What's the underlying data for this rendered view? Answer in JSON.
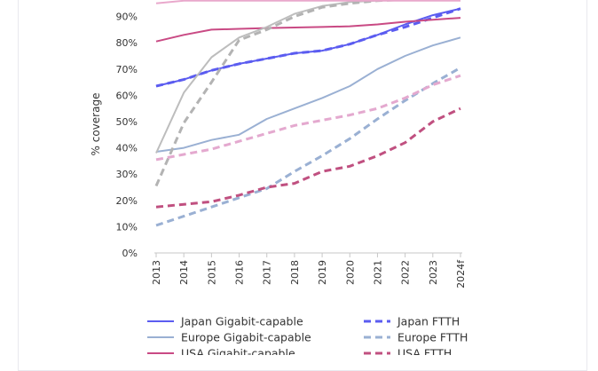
{
  "chart_data": {
    "type": "line",
    "ylabel": "% coverage",
    "ylim": [
      0,
      100
    ],
    "categories": [
      "2013",
      "2014",
      "2015",
      "2016",
      "2017",
      "2018",
      "2019",
      "2020",
      "2021",
      "2022",
      "2023",
      "2024f"
    ],
    "y_ticks": [
      "0%",
      "10%",
      "20%",
      "30%",
      "40%",
      "50%",
      "60%",
      "70%",
      "80%",
      "90%"
    ],
    "legend_position": "bottom",
    "series": [
      {
        "name": "Japan Gigabit-capable",
        "style": "solid",
        "color": "#5b5cf0",
        "values": [
          63.5,
          66,
          69.5,
          72,
          74,
          76,
          77,
          79.5,
          83,
          87,
          90.5,
          93
        ]
      },
      {
        "name": "Japan FTTH",
        "style": "dashed",
        "color": "#5b5cf0",
        "values": [
          63.5,
          66,
          69.5,
          72,
          74,
          76,
          77,
          79.5,
          83,
          86,
          89.5,
          93
        ]
      },
      {
        "name": "Europe Gigabit-capable",
        "style": "solid",
        "color": "#9ab0d3",
        "values": [
          38.5,
          40,
          43,
          45,
          51,
          55,
          59,
          63.5,
          70,
          75,
          79,
          82
        ]
      },
      {
        "name": "Europe FTTH",
        "style": "dashed",
        "color": "#9ab0d3",
        "values": [
          10.5,
          14,
          17.5,
          21,
          24.5,
          31,
          37,
          43.5,
          51,
          58,
          64.5,
          70.5
        ]
      },
      {
        "name": "USA Gigabit-capable",
        "style": "solid",
        "color": "#c94a84",
        "values": [
          80.5,
          83,
          85,
          85.3,
          85.6,
          85.8,
          86,
          86.3,
          87,
          88,
          88.8,
          89.5
        ]
      },
      {
        "name": "USA FTTH",
        "style": "dashed",
        "color": "#c05080",
        "values": [
          17.5,
          18.5,
          19.5,
          22,
          25,
          26.5,
          31,
          33,
          37,
          42,
          50,
          55
        ]
      },
      {
        "name": "",
        "style": "solid",
        "color": "#bdbdbd",
        "values": [
          38,
          61,
          74.5,
          82,
          86,
          91,
          94,
          95.5,
          96,
          96.5,
          97,
          97
        ]
      },
      {
        "name": "",
        "style": "dashed",
        "color": "#b3b3b3",
        "values": [
          25.5,
          49.5,
          65,
          81,
          85,
          90,
          93.5,
          95,
          96,
          96.5,
          97,
          97
        ]
      },
      {
        "name": "",
        "style": "solid",
        "color": "#e9a8cc",
        "values": [
          95,
          96,
          96,
          96,
          96,
          96,
          96,
          96,
          96,
          96,
          96,
          96
        ]
      },
      {
        "name": "",
        "style": "dashed",
        "color": "#e4a9cf",
        "values": [
          35.5,
          37.5,
          39.5,
          42.5,
          45.5,
          48.5,
          50.5,
          52.5,
          55,
          59,
          64,
          67.5
        ]
      }
    ]
  }
}
